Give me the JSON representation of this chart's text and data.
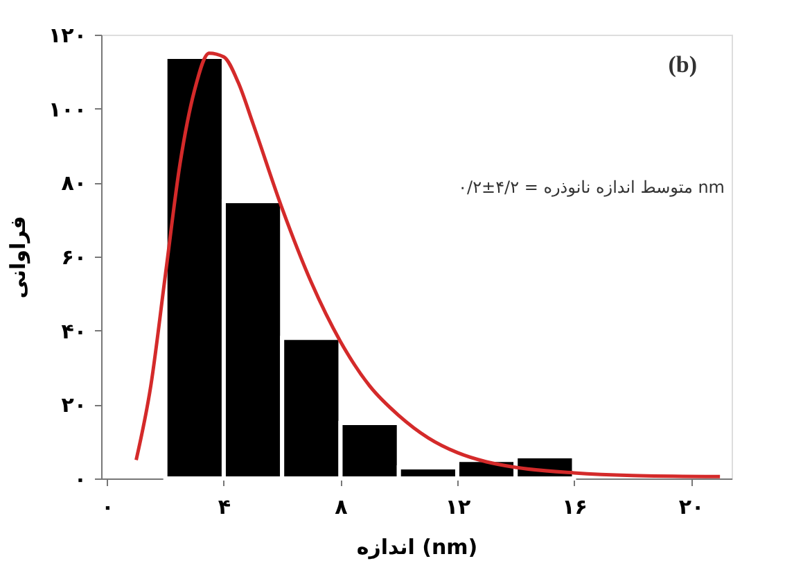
{
  "chart_data": {
    "type": "histogram",
    "bins": [
      2,
      4,
      6,
      8,
      10,
      12,
      14,
      16
    ],
    "values": [
      114,
      75,
      38,
      15,
      3,
      5,
      6
    ],
    "color": "#000000",
    "series": [
      {
        "type": "line",
        "color": "#d42a2a",
        "x": [
          1,
          1.5,
          2,
          2.5,
          3,
          3.5,
          4,
          4.5,
          5,
          6,
          7,
          8,
          9,
          10,
          11,
          12,
          13,
          14,
          16,
          18,
          21
        ],
        "values": [
          5,
          25,
          55,
          85,
          105,
          115,
          114,
          107,
          96,
          73,
          53,
          37,
          25,
          17,
          11,
          7,
          4.5,
          3,
          1.5,
          0.8,
          0.5
        ]
      }
    ],
    "xlabel": "اندازه (nm)",
    "ylabel": "فراوانی",
    "annotations": [
      "(b)",
      "متوسط اندازه نانوذره = ۴/۲±۰/۲ nm"
    ],
    "xlim": [
      -0.2,
      21.4
    ],
    "ylim": [
      0,
      120
    ],
    "xticks": [
      {
        "value": 0,
        "label": "۰"
      },
      {
        "value": 4,
        "label": "۴"
      },
      {
        "value": 8,
        "label": "۸"
      },
      {
        "value": 12,
        "label": "۱۲"
      },
      {
        "value": 16,
        "label": "۱۶"
      },
      {
        "value": 20,
        "label": "۲۰"
      }
    ],
    "yticks": [
      {
        "value": 0,
        "label": "۰"
      },
      {
        "value": 20,
        "label": "۲۰"
      },
      {
        "value": 40,
        "label": "۴۰"
      },
      {
        "value": 60,
        "label": "۶۰"
      },
      {
        "value": 80,
        "label": "۸۰"
      },
      {
        "value": 100,
        "label": "۱۰۰"
      },
      {
        "value": 120,
        "label": "۱۲۰"
      }
    ],
    "grid": false,
    "legend": false,
    "marker": "none"
  }
}
